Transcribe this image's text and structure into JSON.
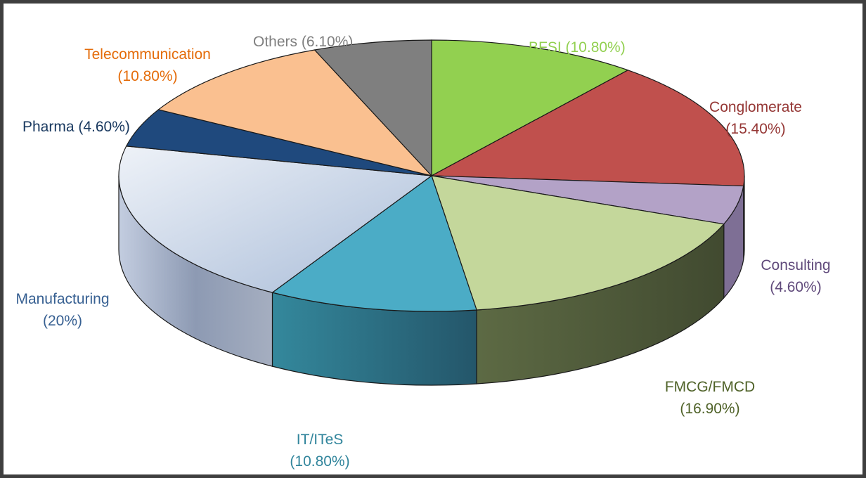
{
  "chart_data": {
    "type": "pie",
    "title": "",
    "style": "3d-exploded-none",
    "categories": [
      "BFSI",
      "Conglomerate",
      "Consulting",
      "FMCG/FMCD",
      "IT/ITeS",
      "Manufacturing",
      "Pharma",
      "Telecommunication",
      "Others"
    ],
    "values": [
      10.8,
      15.4,
      4.6,
      16.9,
      10.8,
      20.0,
      4.6,
      10.8,
      6.1
    ],
    "unit": "%",
    "colors": [
      "#92d050",
      "#c0504d",
      "#b3a2c7",
      "#c4d79b",
      "#4bacc6",
      "#c6d4e8",
      "#1f497d",
      "#fac090",
      "#7f7f7f"
    ],
    "legend": "none"
  },
  "labels": {
    "bfsi": {
      "name": "BFSI (10.80%)",
      "color": "#92d050"
    },
    "conglomerate": {
      "line1": "Conglomerate",
      "line2": "(15.40%)",
      "color": "#953735"
    },
    "consulting": {
      "line1": "Consulting",
      "line2": "(4.60%)",
      "color": "#604a7b"
    },
    "fmcg": {
      "line1": "FMCG/FMCD",
      "line2": "(16.90%)",
      "color": "#4f6228"
    },
    "it": {
      "line1": "IT/ITeS",
      "line2": "(10.80%)",
      "color": "#31859c"
    },
    "manufacturing": {
      "line1": "Manufacturing",
      "line2": "(20%)",
      "color": "#376092"
    },
    "pharma": {
      "name": "Pharma (4.60%)",
      "color": "#17375e"
    },
    "telecom": {
      "line1": "Telecommunication",
      "line2": "(10.80%)",
      "color": "#e46c0a"
    },
    "others": {
      "name": "Others (6.10%)",
      "color": "#7f7f7f"
    }
  }
}
